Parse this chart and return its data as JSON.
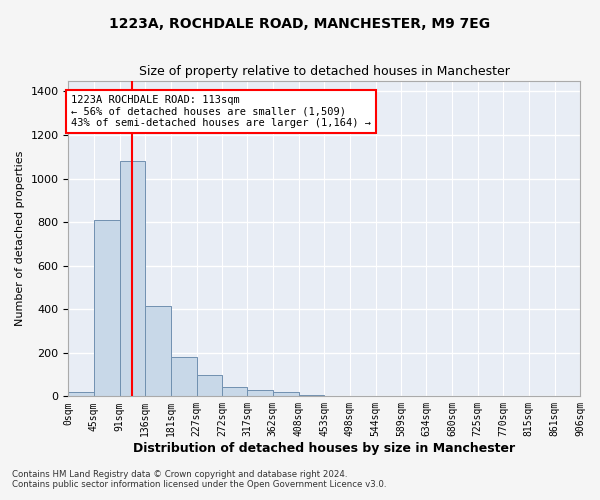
{
  "title_line1": "1223A, ROCHDALE ROAD, MANCHESTER, M9 7EG",
  "title_line2": "Size of property relative to detached houses in Manchester",
  "xlabel": "Distribution of detached houses by size in Manchester",
  "ylabel": "Number of detached properties",
  "bar_values": [
    20,
    810,
    1080,
    415,
    180,
    100,
    45,
    30,
    20,
    8,
    0,
    0,
    0,
    0,
    0,
    0,
    0,
    0,
    0,
    0
  ],
  "bin_edges": [
    0,
    45,
    91,
    136,
    181,
    227,
    272,
    317,
    362,
    408,
    453,
    498,
    544,
    589,
    634,
    680,
    725,
    770,
    815,
    861,
    906
  ],
  "tick_labels": [
    "0sqm",
    "45sqm",
    "91sqm",
    "136sqm",
    "181sqm",
    "227sqm",
    "272sqm",
    "317sqm",
    "362sqm",
    "408sqm",
    "453sqm",
    "498sqm",
    "544sqm",
    "589sqm",
    "634sqm",
    "680sqm",
    "725sqm",
    "770sqm",
    "815sqm",
    "861sqm",
    "906sqm"
  ],
  "bar_color": "#c8d8e8",
  "bar_edge_color": "#7090b0",
  "bg_color": "#e8edf5",
  "grid_color": "#ffffff",
  "fig_bg_color": "#f5f5f5",
  "annotation_text_line1": "1223A ROCHDALE ROAD: 113sqm",
  "annotation_text_line2": "← 56% of detached houses are smaller (1,509)",
  "annotation_text_line3": "43% of semi-detached houses are larger (1,164) →",
  "property_line_x": 113,
  "ylim": [
    0,
    1450
  ],
  "yticks": [
    0,
    200,
    400,
    600,
    800,
    1000,
    1200,
    1400
  ],
  "footer_line1": "Contains HM Land Registry data © Crown copyright and database right 2024.",
  "footer_line2": "Contains public sector information licensed under the Open Government Licence v3.0."
}
